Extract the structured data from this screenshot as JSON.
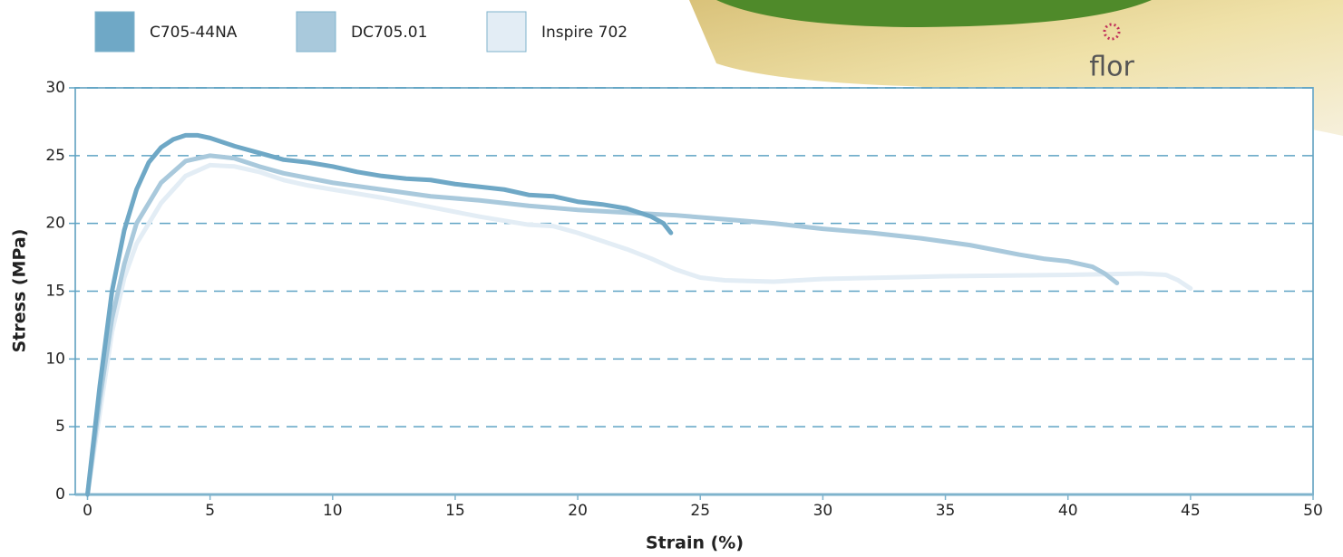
{
  "chart_data": {
    "type": "line",
    "x_label": "Strain (%)",
    "y_label": "Stress (MPa)",
    "annotation": "flor",
    "xlim": [
      -0.5,
      50
    ],
    "ylim": [
      0,
      30
    ],
    "xticks": [
      0,
      5,
      10,
      15,
      20,
      25,
      30,
      35,
      40,
      45,
      50
    ],
    "yticks": [
      0,
      5,
      10,
      15,
      20,
      25,
      30
    ],
    "grid": true,
    "series": [
      {
        "name": "C705-44NA",
        "color": "#6fa8c6",
        "x": [
          0,
          0.5,
          1,
          1.5,
          2,
          2.5,
          3,
          3.5,
          4,
          4.5,
          5,
          6,
          7,
          8,
          9,
          10,
          11,
          12,
          13,
          14,
          15,
          16,
          17,
          18,
          19,
          20,
          21,
          22,
          23,
          23.5,
          23.8
        ],
        "values": [
          0,
          8,
          15,
          19.5,
          22.5,
          24.5,
          25.6,
          26.2,
          26.5,
          26.5,
          26.3,
          25.7,
          25.2,
          24.7,
          24.5,
          24.2,
          23.8,
          23.5,
          23.3,
          23.2,
          22.9,
          22.7,
          22.5,
          22.1,
          22,
          21.6,
          21.4,
          21.1,
          20.5,
          20,
          19.3
        ]
      },
      {
        "name": "DC705.01",
        "color": "#a9c9dc",
        "x": [
          0,
          0.5,
          1,
          1.5,
          2,
          3,
          4,
          5,
          6,
          7,
          8,
          10,
          12,
          14,
          16,
          18,
          20,
          22,
          24,
          26,
          28,
          30,
          32,
          34,
          36,
          38,
          39,
          40,
          41,
          41.5,
          42
        ],
        "values": [
          0,
          7,
          13,
          17,
          20,
          23,
          24.6,
          25,
          24.8,
          24.2,
          23.7,
          23,
          22.5,
          22,
          21.7,
          21.3,
          21,
          20.8,
          20.6,
          20.3,
          20,
          19.6,
          19.3,
          18.9,
          18.4,
          17.7,
          17.4,
          17.2,
          16.8,
          16.3,
          15.6
        ]
      },
      {
        "name": "Inspire 702",
        "color": "#e3edf5",
        "x": [
          0,
          0.5,
          1,
          1.5,
          2,
          3,
          4,
          5,
          6,
          7,
          8,
          9,
          10,
          12,
          14,
          16,
          18,
          19,
          20,
          21,
          22,
          23,
          24,
          25,
          26,
          28,
          30,
          35,
          40,
          43,
          44,
          44.5,
          45
        ],
        "values": [
          0,
          6,
          12,
          16,
          18.5,
          21.5,
          23.5,
          24.3,
          24.2,
          23.8,
          23.2,
          22.8,
          22.5,
          21.9,
          21.2,
          20.5,
          19.9,
          19.8,
          19.3,
          18.7,
          18.1,
          17.4,
          16.6,
          16,
          15.8,
          15.7,
          15.9,
          16.1,
          16.2,
          16.3,
          16.2,
          15.8,
          15.2
        ]
      }
    ]
  }
}
